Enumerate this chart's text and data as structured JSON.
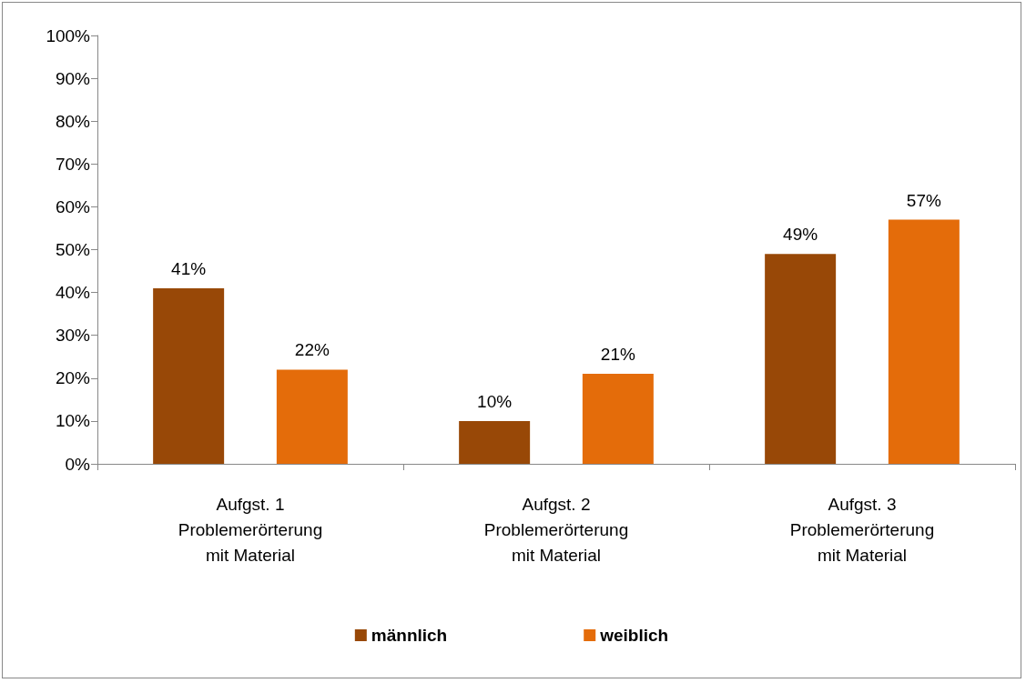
{
  "chart_data": {
    "type": "bar",
    "categories": [
      "Aufgst. 1\nProblemerörterung\nmit Material",
      "Aufgst. 2\nProblemerörterung\nmit Material",
      "Aufgst. 3\nProblemerörterung\nmit Material"
    ],
    "series": [
      {
        "name": "männlich",
        "color": "#984807",
        "values": [
          41,
          10,
          49
        ],
        "value_labels": [
          "41%",
          "10%",
          "49%"
        ]
      },
      {
        "name": "weiblich",
        "color": "#e46c0a",
        "values": [
          22,
          21,
          57
        ],
        "value_labels": [
          "22%",
          "21%",
          "57%"
        ]
      }
    ],
    "ylim": [
      0,
      100
    ],
    "yticks": [
      {
        "value": 0,
        "label": "0%"
      },
      {
        "value": 10,
        "label": "10%"
      },
      {
        "value": 20,
        "label": "20%"
      },
      {
        "value": 30,
        "label": "30%"
      },
      {
        "value": 40,
        "label": "40%"
      },
      {
        "value": 50,
        "label": "50%"
      },
      {
        "value": 60,
        "label": "60%"
      },
      {
        "value": 70,
        "label": "70%"
      },
      {
        "value": 80,
        "label": "80%"
      },
      {
        "value": 90,
        "label": "90%"
      },
      {
        "value": 100,
        "label": "100%"
      }
    ],
    "grid": false,
    "legend": "bottom"
  }
}
